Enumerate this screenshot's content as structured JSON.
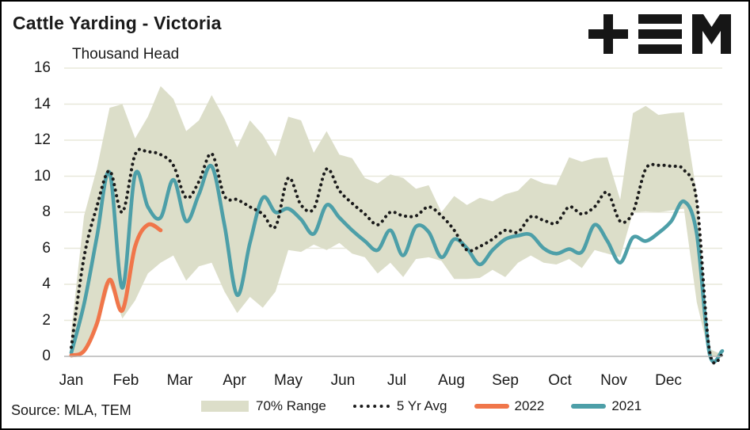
{
  "header": {
    "title": "Cattle Yarding - Victoria",
    "unit_label": "Thousand Head",
    "logo_name": "TEM"
  },
  "footer": {
    "source": "Source: MLA, TEM"
  },
  "colors": {
    "band": "#dcdec9",
    "avg_dots": "#1b1b1b",
    "y2022": "#f0764a",
    "y2021": "#4d9fa8",
    "grid": "#e8e8da",
    "axis_line": "#b5b5b5",
    "text": "#1a1a1a",
    "logo": "#161616"
  },
  "legend": {
    "items": [
      {
        "id": "range",
        "label": "70% Range",
        "swatch": "band-fill"
      },
      {
        "id": "avg",
        "label": "5 Yr Avg",
        "swatch": "dotted-line"
      },
      {
        "id": "y2022",
        "label": "2022",
        "swatch": "orange-line"
      },
      {
        "id": "y2021",
        "label": "2021",
        "swatch": "teal-line"
      }
    ]
  },
  "chart_data": {
    "type": "line",
    "title": "Cattle Yarding - Victoria",
    "xlabel": "",
    "ylabel": "Thousand Head",
    "ylim": [
      0,
      16
    ],
    "y_ticks": [
      0,
      2,
      4,
      6,
      8,
      10,
      12,
      14,
      16
    ],
    "x_categories": [
      "Jan",
      "Feb",
      "Mar",
      "Apr",
      "May",
      "Jun",
      "Jul",
      "Aug",
      "Sep",
      "Oct",
      "Nov",
      "Dec"
    ],
    "x_resolution": "52 weekly points spanning Jan-Dec",
    "grid": "horizontal",
    "legend_position": "bottom",
    "band": {
      "name": "70% Range",
      "upper": [
        1.4,
        7.8,
        10.4,
        13.8,
        14.0,
        12.1,
        13.3,
        15.0,
        14.3,
        12.5,
        13.1,
        14.5,
        13.2,
        11.6,
        13.1,
        12.3,
        11.1,
        13.3,
        13.1,
        11.3,
        12.5,
        11.2,
        11.0,
        9.9,
        9.6,
        10.1,
        9.9,
        9.3,
        9.5,
        8.0,
        8.9,
        8.4,
        8.8,
        8.6,
        9.0,
        9.2,
        9.9,
        9.6,
        9.5,
        11.05,
        10.8,
        11.0,
        11.05,
        8.7,
        13.5,
        13.9,
        13.4,
        13.5,
        13.55,
        9.0,
        0.4,
        0.1
      ],
      "lower": [
        0.0,
        0.3,
        1.5,
        4.0,
        2.1,
        3.1,
        4.6,
        5.2,
        5.6,
        4.2,
        5.0,
        5.2,
        3.6,
        2.4,
        3.3,
        2.7,
        3.6,
        5.9,
        5.8,
        6.2,
        5.9,
        6.3,
        5.7,
        5.5,
        4.6,
        5.2,
        4.4,
        5.4,
        5.5,
        5.3,
        4.3,
        4.3,
        4.35,
        4.8,
        4.4,
        5.2,
        5.6,
        5.2,
        5.1,
        5.4,
        4.9,
        5.9,
        5.7,
        5.5,
        8.0,
        8.05,
        8.0,
        8.1,
        8.2,
        3.0,
        0.0,
        0.0
      ]
    },
    "series": [
      {
        "name": "5 Yr Avg",
        "style": "dotted",
        "color_key": "avg_dots",
        "values": [
          0.5,
          5.5,
          8.3,
          10.3,
          8.0,
          11.2,
          11.35,
          11.2,
          10.6,
          8.8,
          9.7,
          11.25,
          8.9,
          8.7,
          8.3,
          7.9,
          7.2,
          9.9,
          8.4,
          8.2,
          10.4,
          9.2,
          8.5,
          7.9,
          7.3,
          8.0,
          7.8,
          7.8,
          8.3,
          7.8,
          7.0,
          5.9,
          6.1,
          6.5,
          7.0,
          6.9,
          7.75,
          7.55,
          7.4,
          8.3,
          7.9,
          8.3,
          9.1,
          7.5,
          8.0,
          10.4,
          10.6,
          10.55,
          10.35,
          8.6,
          0.3,
          0.1
        ]
      },
      {
        "name": "2022",
        "style": "solid",
        "color_key": "y2022",
        "values": [
          0.05,
          0.3,
          1.8,
          4.25,
          2.55,
          6.1,
          7.3,
          7.0
        ]
      },
      {
        "name": "2021",
        "style": "solid",
        "color_key": "y2021",
        "values": [
          0.2,
          2.9,
          6.6,
          10.2,
          3.8,
          10.1,
          8.3,
          7.7,
          9.8,
          7.5,
          9.0,
          10.55,
          7.3,
          3.4,
          6.3,
          8.8,
          8.0,
          8.2,
          7.6,
          6.8,
          8.4,
          7.7,
          7.0,
          6.4,
          5.9,
          7.0,
          5.6,
          7.2,
          6.9,
          5.5,
          6.5,
          6.0,
          5.1,
          5.9,
          6.5,
          6.7,
          6.75,
          6.0,
          5.7,
          5.95,
          5.8,
          7.3,
          6.4,
          5.2,
          6.6,
          6.4,
          6.85,
          7.5,
          8.6,
          6.8,
          0.15,
          0.3
        ]
      }
    ]
  }
}
